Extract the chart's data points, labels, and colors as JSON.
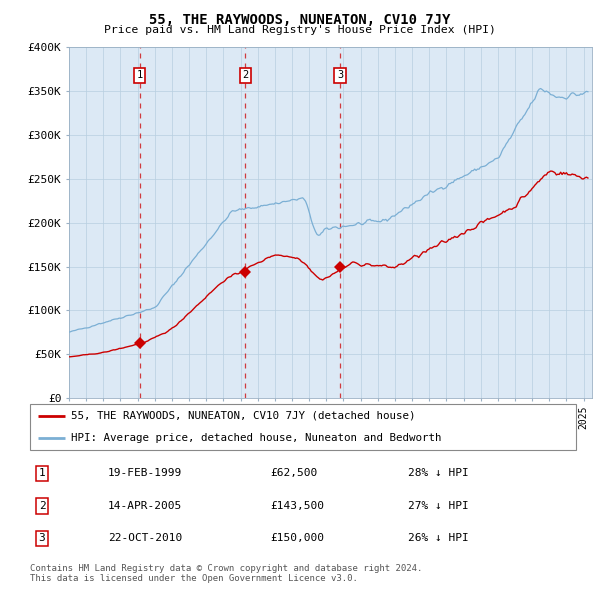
{
  "title": "55, THE RAYWOODS, NUNEATON, CV10 7JY",
  "subtitle": "Price paid vs. HM Land Registry's House Price Index (HPI)",
  "ylim": [
    0,
    400000
  ],
  "yticks": [
    0,
    50000,
    100000,
    150000,
    200000,
    250000,
    300000,
    350000,
    400000
  ],
  "ytick_labels": [
    "£0",
    "£50K",
    "£100K",
    "£150K",
    "£200K",
    "£250K",
    "£300K",
    "£350K",
    "£400K"
  ],
  "xlim_start": 1995.0,
  "xlim_end": 2025.5,
  "hpi_color": "#7bafd4",
  "property_color": "#cc0000",
  "bg_color": "#dce9f5",
  "sales": [
    {
      "date": 1999.12,
      "price": 62500,
      "label": "1"
    },
    {
      "date": 2005.28,
      "price": 143500,
      "label": "2"
    },
    {
      "date": 2010.81,
      "price": 150000,
      "label": "3"
    }
  ],
  "legend_property": "55, THE RAYWOODS, NUNEATON, CV10 7JY (detached house)",
  "legend_hpi": "HPI: Average price, detached house, Nuneaton and Bedworth",
  "table_rows": [
    {
      "num": "1",
      "date": "19-FEB-1999",
      "price": "£62,500",
      "hpi": "28% ↓ HPI"
    },
    {
      "num": "2",
      "date": "14-APR-2005",
      "price": "£143,500",
      "hpi": "27% ↓ HPI"
    },
    {
      "num": "3",
      "date": "22-OCT-2010",
      "price": "£150,000",
      "hpi": "26% ↓ HPI"
    }
  ],
  "footnote": "Contains HM Land Registry data © Crown copyright and database right 2024.\nThis data is licensed under the Open Government Licence v3.0."
}
